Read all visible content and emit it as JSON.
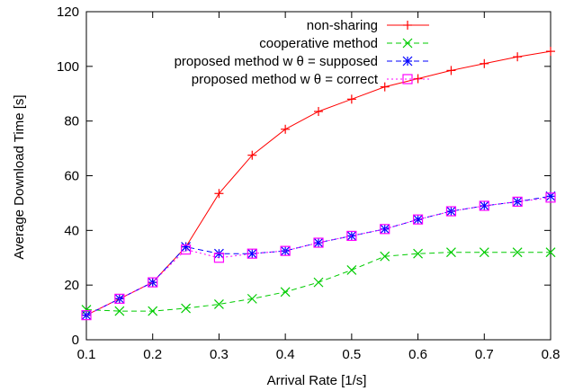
{
  "chart_data": {
    "type": "line",
    "title": "",
    "xlabel": "Arrival Rate [1/s]",
    "ylabel": "Average Download Time [s]",
    "xlim": [
      0.1,
      0.8
    ],
    "ylim": [
      0,
      120
    ],
    "xticks": [
      "0.1",
      "0.2",
      "0.3",
      "0.4",
      "0.5",
      "0.6",
      "0.7",
      "0.8"
    ],
    "yticks": [
      "0",
      "20",
      "40",
      "60",
      "80",
      "100",
      "120"
    ],
    "grid": false,
    "legend_position": "top-right",
    "x": [
      0.1,
      0.15,
      0.2,
      0.25,
      0.3,
      0.35,
      0.4,
      0.45,
      0.5,
      0.55,
      0.6,
      0.65,
      0.7,
      0.75,
      0.8
    ],
    "series": [
      {
        "name": "non-sharing",
        "color": "#ff0000",
        "marker": "plus",
        "dash": "solid",
        "values": [
          9,
          15,
          21,
          34,
          53.5,
          67.5,
          77,
          83.5,
          88,
          92.5,
          95.5,
          98.5,
          101,
          103.5,
          105.5
        ]
      },
      {
        "name": "cooperative method",
        "color": "#00cc00",
        "marker": "cross",
        "dash": "dashed",
        "values": [
          11,
          10.5,
          10.5,
          11.5,
          13,
          15,
          17.5,
          21,
          25.5,
          30.5,
          31.5,
          32,
          32,
          32,
          32
        ]
      },
      {
        "name": "proposed method w θ = supposed",
        "color": "#0000ff",
        "marker": "star",
        "dash": "dashed",
        "values": [
          9,
          15,
          21,
          34,
          31.5,
          31.5,
          32.5,
          35.5,
          38,
          40.5,
          44,
          47,
          49,
          50.5,
          52.5
        ]
      },
      {
        "name": "proposed method w θ = correct",
        "color": "#ff00ff",
        "marker": "square",
        "dash": "dotted",
        "values": [
          9,
          15,
          21,
          33,
          30,
          31.5,
          32.5,
          35.5,
          38,
          40.5,
          44,
          47,
          49,
          50.5,
          52
        ]
      }
    ]
  }
}
